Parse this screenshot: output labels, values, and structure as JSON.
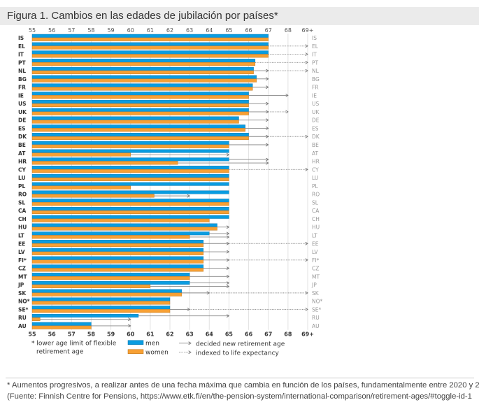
{
  "title": "Figura 1. Cambios en las edades de jubilación por países*",
  "footnote_1": "* Aumentos progresivos, a realizar antes de una fecha máxima que cambia en función de los países, fundamentalmente entre 2020 y 2030",
  "footnote_2": "(Fuente: Finnish Centre for Pensions, https://www.etk.fi/en/the-pension-system/international-comparison/retirement-ages/#toggle-id-1",
  "chart_data": {
    "type": "bar",
    "orientation": "horizontal",
    "xlim": [
      55,
      69
    ],
    "x_ticks": [
      "55",
      "56",
      "57",
      "58",
      "59",
      "60",
      "61",
      "62",
      "63",
      "64",
      "65",
      "66",
      "67",
      "68",
      "69+"
    ],
    "grid": true,
    "colors": {
      "men": "#0a9ce0",
      "women": "#f7a034",
      "arrow": "#888888"
    },
    "legend": {
      "men": "men",
      "women": "women",
      "decided": "decided new retirement age",
      "indexed": "indexed to life expectancy",
      "asterisk_1": "* lower age limit of flexible",
      "asterisk_2": "retirement age"
    },
    "rows": [
      {
        "country": "IS",
        "men": 67,
        "women": 67,
        "men_target": null,
        "women_target": null,
        "indexed_to": null
      },
      {
        "country": "EL",
        "men": 67,
        "women": 67,
        "men_target": null,
        "women_target": null,
        "indexed_to": 69
      },
      {
        "country": "IT",
        "men": 67,
        "women": 67,
        "men_target": null,
        "women_target": null,
        "indexed_to": 69
      },
      {
        "country": "PT",
        "men": 66.33,
        "women": 66.33,
        "men_target": null,
        "women_target": null,
        "indexed_to": 69
      },
      {
        "country": "NL",
        "men": 66.25,
        "women": 66.25,
        "men_target": 67,
        "women_target": 67,
        "indexed_to": 69
      },
      {
        "country": "BG",
        "men": 66.4,
        "women": 66.4,
        "men_target": 67,
        "women_target": 67,
        "indexed_to": null
      },
      {
        "country": "FR",
        "men": 66.2,
        "women": 66.2,
        "men_target": 67,
        "women_target": 67,
        "indexed_to": null
      },
      {
        "country": "IE",
        "men": 66,
        "women": 66,
        "men_target": 68,
        "women_target": 68,
        "indexed_to": null
      },
      {
        "country": "US",
        "men": 66,
        "women": 66,
        "men_target": 67,
        "women_target": 67,
        "indexed_to": null
      },
      {
        "country": "UK",
        "men": 66,
        "women": 66,
        "men_target": 67,
        "women_target": 67,
        "indexed_to": 68
      },
      {
        "country": "DE",
        "men": 65.5,
        "women": 65.5,
        "men_target": 67,
        "women_target": 67,
        "indexed_to": null
      },
      {
        "country": "ES",
        "men": 65.83,
        "women": 65.83,
        "men_target": 67,
        "women_target": 67,
        "indexed_to": null
      },
      {
        "country": "DK",
        "men": 66,
        "women": 66,
        "men_target": 67,
        "women_target": 67,
        "indexed_to": 69
      },
      {
        "country": "BE",
        "men": 65,
        "women": 65,
        "men_target": 67,
        "women_target": 67,
        "indexed_to": null
      },
      {
        "country": "AT",
        "men": 65,
        "women": 60,
        "men_target": null,
        "women_target": 65,
        "indexed_to": null
      },
      {
        "country": "HR",
        "men": 65,
        "women": 62.4,
        "men_target": 67,
        "women_target": 67,
        "indexed_to": null
      },
      {
        "country": "CY",
        "men": 65,
        "women": 65,
        "men_target": null,
        "women_target": null,
        "indexed_to": 69
      },
      {
        "country": "LU",
        "men": 65,
        "women": 65,
        "men_target": null,
        "women_target": null,
        "indexed_to": null
      },
      {
        "country": "PL",
        "men": 65,
        "women": 60,
        "men_target": null,
        "women_target": null,
        "indexed_to": null
      },
      {
        "country": "RO",
        "men": 65,
        "women": 61.2,
        "men_target": null,
        "women_target": 63,
        "indexed_to": null
      },
      {
        "country": "SL",
        "men": 65,
        "women": 65,
        "men_target": null,
        "women_target": null,
        "indexed_to": null
      },
      {
        "country": "CA",
        "men": 65,
        "women": 65,
        "men_target": null,
        "women_target": null,
        "indexed_to": null
      },
      {
        "country": "CH",
        "men": 65,
        "women": 64,
        "men_target": null,
        "women_target": null,
        "indexed_to": null
      },
      {
        "country": "HU",
        "men": 64.4,
        "women": 64.4,
        "men_target": 65,
        "women_target": 65,
        "indexed_to": null
      },
      {
        "country": "LT",
        "men": 64,
        "women": 63,
        "men_target": 65,
        "women_target": 65,
        "indexed_to": null
      },
      {
        "country": "EE",
        "men": 63.7,
        "women": 63.7,
        "men_target": 65,
        "women_target": 65,
        "indexed_to": 69
      },
      {
        "country": "LV",
        "men": 63.7,
        "women": 63.7,
        "men_target": 65,
        "women_target": 65,
        "indexed_to": null
      },
      {
        "country": "FI*",
        "men": 63.7,
        "women": 63.7,
        "men_target": 65,
        "women_target": 65,
        "indexed_to": 69
      },
      {
        "country": "CZ",
        "men": 63.7,
        "women": 63.7,
        "men_target": 65,
        "women_target": 65,
        "indexed_to": null
      },
      {
        "country": "MT",
        "men": 63,
        "women": 63,
        "men_target": 65,
        "women_target": 65,
        "indexed_to": null
      },
      {
        "country": "JP",
        "men": 63,
        "women": 61,
        "men_target": 65,
        "women_target": 65,
        "indexed_to": null
      },
      {
        "country": "SK",
        "men": 62.6,
        "women": 62.6,
        "men_target": 64,
        "women_target": 64,
        "indexed_to": 69
      },
      {
        "country": "NO*",
        "men": 62,
        "women": 62,
        "men_target": null,
        "women_target": null,
        "indexed_to": null
      },
      {
        "country": "SE*",
        "men": 62,
        "women": 62,
        "men_target": 63,
        "women_target": 63,
        "indexed_to": 69
      },
      {
        "country": "RU",
        "men": 60.4,
        "women": 55.4,
        "men_target": 65,
        "women_target": 60,
        "indexed_to": null
      },
      {
        "country": "AU",
        "men": 58,
        "women": 58,
        "men_target": 60,
        "women_target": 60,
        "indexed_to": null
      }
    ]
  }
}
